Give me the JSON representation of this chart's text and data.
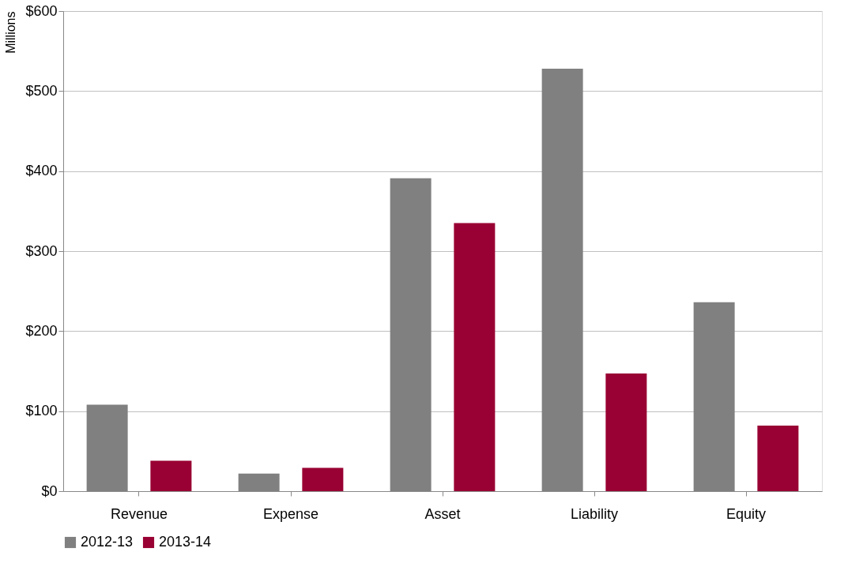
{
  "chart_data": {
    "type": "bar",
    "ylabel": "Millions",
    "categories": [
      "Revenue",
      "Expense",
      "Asset",
      "Liability",
      "Equity"
    ],
    "series": [
      {
        "name": "2012-13",
        "color": "#808080",
        "values": [
          108,
          22,
          391,
          528,
          236
        ]
      },
      {
        "name": "2013-14",
        "color": "#990033",
        "values": [
          38,
          29,
          335,
          147,
          82
        ]
      }
    ],
    "ylim": [
      0,
      600
    ],
    "yticks": [
      {
        "value": 0,
        "label": "$0"
      },
      {
        "value": 100,
        "label": "$100"
      },
      {
        "value": 200,
        "label": "$200"
      },
      {
        "value": 300,
        "label": "$300"
      },
      {
        "value": 400,
        "label": "$400"
      },
      {
        "value": 500,
        "label": "$500"
      },
      {
        "value": 600,
        "label": "$600"
      }
    ],
    "grid": "y",
    "legend": "bottom"
  }
}
